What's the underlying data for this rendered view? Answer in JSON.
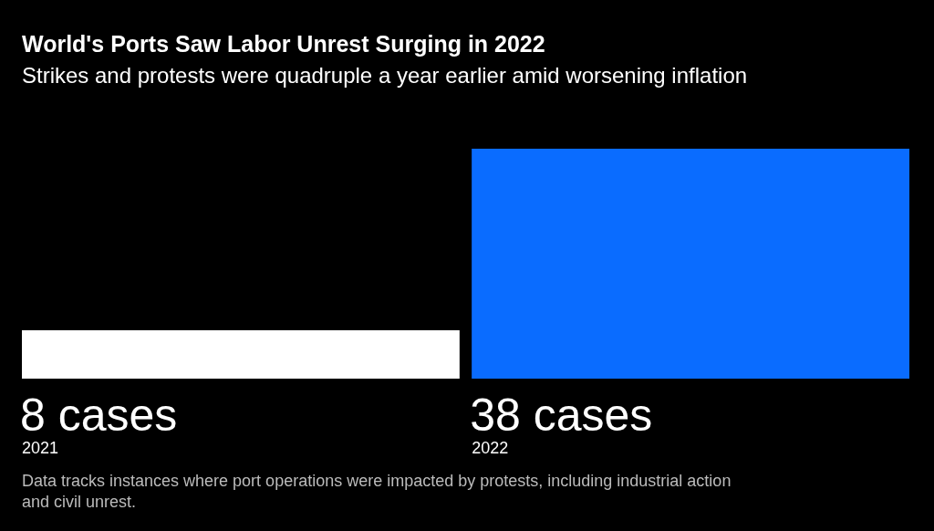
{
  "chart_data": {
    "type": "bar",
    "title": "World's Ports Saw Labor Unrest Surging in 2022",
    "subtitle": "Strikes and protests were quadruple a year earlier amid worsening inflation",
    "categories": [
      "2021",
      "2022"
    ],
    "values": [
      8,
      38
    ],
    "colors": [
      "#ffffff",
      "#0a6cff"
    ],
    "value_labels": [
      "8 cases",
      "38 cases"
    ],
    "annotations": [
      "Data tracks instances where port operations were impacted by protests, including industrial action and civil unrest."
    ]
  }
}
